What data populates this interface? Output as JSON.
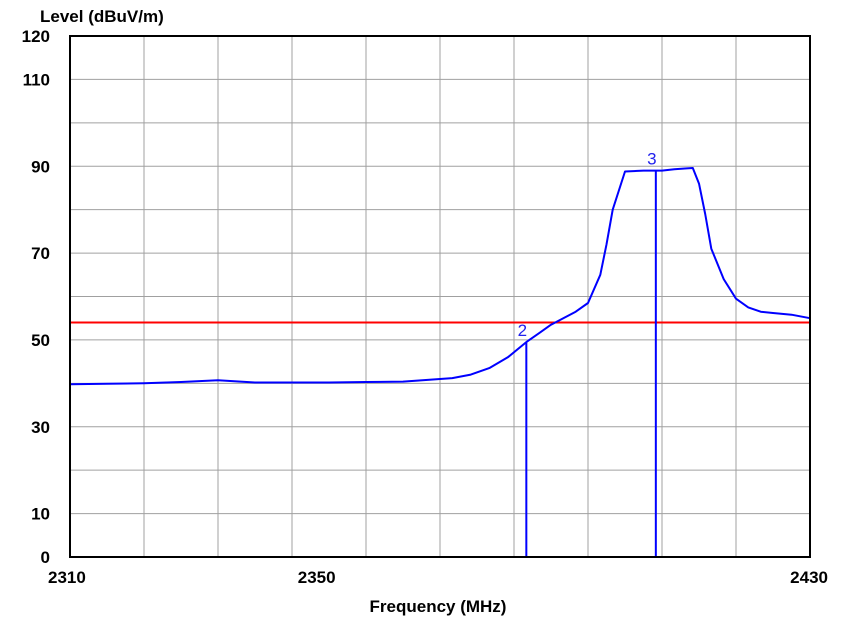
{
  "chart_data": {
    "type": "line",
    "title": "",
    "xlabel": "Frequency (MHz)",
    "ylabel": "Level (dBuV/m)",
    "xlim": [
      2310,
      2430
    ],
    "ylim": [
      0,
      120
    ],
    "x_ticks": [
      2310,
      2350,
      2430
    ],
    "y_ticks": [
      120,
      110,
      90,
      70,
      50,
      30,
      10,
      0
    ],
    "grid": true,
    "grid_x": [
      2310,
      2322,
      2334,
      2346,
      2358,
      2370,
      2382,
      2394,
      2406,
      2418,
      2430
    ],
    "grid_y": [
      0,
      10,
      20,
      30,
      40,
      50,
      60,
      70,
      80,
      90,
      100,
      110,
      120
    ],
    "limit_line": {
      "value": 54,
      "color": "#ff0000"
    },
    "series": [
      {
        "color": "#0000ff",
        "x": [
          2310,
          2316,
          2322,
          2328,
          2334,
          2340,
          2346,
          2352,
          2358,
          2364,
          2368,
          2372,
          2375,
          2378,
          2381,
          2384,
          2386,
          2388,
          2390,
          2392,
          2394,
          2396,
          2397,
          2398,
          2400,
          2403,
          2406,
          2408,
          2410,
          2411,
          2412,
          2413,
          2414,
          2416,
          2418,
          2420,
          2422,
          2424,
          2427,
          2430
        ],
        "y": [
          39.8,
          39.9,
          40.0,
          40.3,
          40.7,
          40.2,
          40.2,
          40.2,
          40.3,
          40.4,
          40.8,
          41.2,
          42.0,
          43.5,
          46.0,
          49.5,
          51.5,
          53.5,
          55.0,
          56.5,
          58.5,
          65.0,
          72.0,
          80.0,
          88.8,
          89.0,
          89.0,
          89.3,
          89.5,
          89.6,
          86.0,
          79.0,
          71.0,
          64.0,
          59.5,
          57.5,
          56.5,
          56.2,
          55.8,
          55.0
        ]
      }
    ],
    "markers": [
      {
        "label": "2",
        "x": 2384,
        "y": 49.5,
        "color": "#0000ff"
      },
      {
        "label": "3",
        "x": 2405,
        "y": 89.0,
        "color": "#0000ff"
      }
    ]
  }
}
